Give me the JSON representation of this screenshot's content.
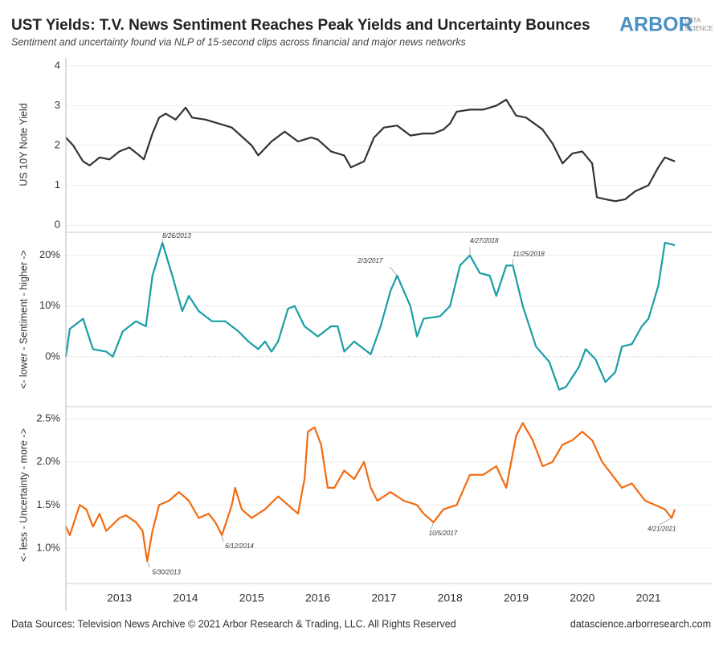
{
  "header": {
    "title": "UST Yields: T.V. News Sentiment Reaches Peak Yields and Uncertainty Bounces",
    "subtitle": "Sentiment and uncertainty found via NLP of 15-second clips across financial and major news networks",
    "logo": "ARBOR",
    "logo_sub": [
      "DATA",
      "SCIENCE"
    ]
  },
  "footer": {
    "left": "Data Sources: Television News Archive © 2021 Arbor Research & Trading, LLC. All Rights Reserved",
    "right": "datascience.arborresearch.com"
  },
  "chart_data": [
    {
      "type": "line",
      "y_label": "US 10Y Note Yield",
      "color": "#333333",
      "grid": true,
      "xlim": [
        2012.19,
        2021.97
      ],
      "ylim": [
        -0.16,
        4.2
      ],
      "yticks": [
        0,
        1,
        2,
        3,
        4
      ],
      "x": [
        2012.19,
        2012.3,
        2012.45,
        2012.55,
        2012.7,
        2012.85,
        2013.0,
        2013.15,
        2013.3,
        2013.37,
        2013.5,
        2013.6,
        2013.7,
        2013.85,
        2014.0,
        2014.1,
        2014.3,
        2014.5,
        2014.7,
        2014.8,
        2015.0,
        2015.1,
        2015.3,
        2015.5,
        2015.7,
        2015.9,
        2016.0,
        2016.2,
        2016.4,
        2016.5,
        2016.7,
        2016.85,
        2017.0,
        2017.2,
        2017.4,
        2017.6,
        2017.75,
        2017.9,
        2018.0,
        2018.1,
        2018.3,
        2018.5,
        2018.7,
        2018.85,
        2019.0,
        2019.15,
        2019.4,
        2019.55,
        2019.7,
        2019.85,
        2020.0,
        2020.15,
        2020.22,
        2020.35,
        2020.5,
        2020.65,
        2020.8,
        2021.0,
        2021.15,
        2021.25,
        2021.4
      ],
      "values": [
        2.2,
        2.0,
        1.6,
        1.5,
        1.7,
        1.65,
        1.85,
        1.95,
        1.75,
        1.65,
        2.3,
        2.7,
        2.8,
        2.65,
        2.95,
        2.7,
        2.65,
        2.55,
        2.45,
        2.3,
        2.0,
        1.75,
        2.1,
        2.35,
        2.1,
        2.2,
        2.15,
        1.85,
        1.75,
        1.45,
        1.6,
        2.2,
        2.45,
        2.5,
        2.25,
        2.3,
        2.3,
        2.4,
        2.55,
        2.85,
        2.9,
        2.9,
        3.0,
        3.15,
        2.75,
        2.7,
        2.4,
        2.05,
        1.55,
        1.8,
        1.85,
        1.55,
        0.7,
        0.65,
        0.6,
        0.65,
        0.85,
        1.0,
        1.45,
        1.7,
        1.6
      ]
    },
    {
      "type": "line",
      "y_label": "<- lower - Sentiment - higher ->",
      "color": "#1a9ea6",
      "grid": true,
      "xlim": [
        2012.19,
        2021.97
      ],
      "ylim": [
        -9.7,
        24.4
      ],
      "yticks": [
        {
          "value": 0,
          "label": "0%"
        },
        {
          "value": 10,
          "label": "10%"
        },
        {
          "value": 20,
          "label": "20%"
        }
      ],
      "x": [
        2012.19,
        2012.25,
        2012.45,
        2012.6,
        2012.8,
        2012.9,
        2013.05,
        2013.25,
        2013.4,
        2013.5,
        2013.65,
        2013.8,
        2013.95,
        2014.05,
        2014.2,
        2014.4,
        2014.6,
        2014.8,
        2014.95,
        2015.1,
        2015.2,
        2015.3,
        2015.4,
        2015.55,
        2015.65,
        2015.8,
        2016.0,
        2016.2,
        2016.3,
        2016.4,
        2016.55,
        2016.7,
        2016.8,
        2016.95,
        2017.1,
        2017.2,
        2017.4,
        2017.5,
        2017.6,
        2017.85,
        2018.0,
        2018.15,
        2018.3,
        2018.45,
        2018.6,
        2018.7,
        2018.85,
        2018.95,
        2019.1,
        2019.3,
        2019.5,
        2019.65,
        2019.75,
        2019.95,
        2020.05,
        2020.2,
        2020.35,
        2020.5,
        2020.6,
        2020.75,
        2020.9,
        2021.0,
        2021.15,
        2021.25,
        2021.4
      ],
      "values": [
        0,
        5.5,
        7.5,
        1.5,
        1,
        0,
        5,
        7,
        6,
        16,
        22.5,
        16,
        9,
        12,
        9,
        7,
        7,
        5,
        3,
        1.5,
        3,
        1,
        3,
        9.5,
        10,
        6,
        4,
        6,
        6,
        1,
        3,
        1.5,
        0.5,
        6,
        13,
        16,
        10,
        4,
        7.5,
        8,
        10,
        18,
        20,
        16.5,
        16,
        12,
        18,
        18,
        10,
        2,
        -1,
        -6.5,
        -6,
        -2,
        1.5,
        -0.5,
        -5,
        -3,
        2,
        2.5,
        6,
        7.5,
        14,
        22.5,
        22
      ],
      "annotations": [
        {
          "text": "8/26/2013",
          "x": 2013.65,
          "y": 22.5
        },
        {
          "text": "2/3/2017",
          "x": 2017.2,
          "y": 16
        },
        {
          "text": "4/27/2018",
          "x": 2018.3,
          "y": 20
        },
        {
          "text": "11/25/2018",
          "x": 2018.95,
          "y": 18
        }
      ]
    },
    {
      "type": "line",
      "y_label": "<- less - Uncertainty - more ->",
      "color": "#f26b11",
      "grid": true,
      "xlim": [
        2012.19,
        2021.97
      ],
      "ylim": [
        0.6,
        2.63
      ],
      "yticks": [
        {
          "value": 1,
          "label": "1.0%"
        },
        {
          "value": 1.5,
          "label": "1.5%"
        },
        {
          "value": 2,
          "label": "2.0%"
        },
        {
          "value": 2.5,
          "label": "2.5%"
        }
      ],
      "xticks": [
        2013,
        2014,
        2015,
        2016,
        2017,
        2018,
        2019,
        2020,
        2021
      ],
      "x": [
        2012.19,
        2012.25,
        2012.4,
        2012.5,
        2012.6,
        2012.7,
        2012.8,
        2013.0,
        2013.1,
        2013.25,
        2013.35,
        2013.42,
        2013.5,
        2013.6,
        2013.75,
        2013.9,
        2014.05,
        2014.2,
        2014.35,
        2014.45,
        2014.55,
        2014.7,
        2014.75,
        2014.85,
        2015.0,
        2015.2,
        2015.4,
        2015.55,
        2015.7,
        2015.8,
        2015.85,
        2015.95,
        2016.05,
        2016.15,
        2016.25,
        2016.4,
        2016.55,
        2016.7,
        2016.8,
        2016.9,
        2017.1,
        2017.3,
        2017.5,
        2017.6,
        2017.75,
        2017.9,
        2018.1,
        2018.3,
        2018.5,
        2018.7,
        2018.85,
        2019.0,
        2019.1,
        2019.25,
        2019.4,
        2019.55,
        2019.7,
        2019.85,
        2020.0,
        2020.15,
        2020.3,
        2020.45,
        2020.6,
        2020.75,
        2020.95,
        2021.1,
        2021.25,
        2021.35,
        2021.4
      ],
      "values": [
        1.25,
        1.15,
        1.5,
        1.45,
        1.25,
        1.4,
        1.2,
        1.35,
        1.38,
        1.3,
        1.2,
        0.85,
        1.2,
        1.5,
        1.55,
        1.65,
        1.55,
        1.35,
        1.4,
        1.3,
        1.15,
        1.5,
        1.7,
        1.45,
        1.35,
        1.45,
        1.6,
        1.5,
        1.4,
        1.8,
        2.35,
        2.4,
        2.2,
        1.7,
        1.7,
        1.9,
        1.8,
        2.0,
        1.7,
        1.55,
        1.65,
        1.55,
        1.5,
        1.4,
        1.3,
        1.45,
        1.5,
        1.85,
        1.85,
        1.95,
        1.7,
        2.3,
        2.45,
        2.25,
        1.95,
        2.0,
        2.2,
        2.25,
        2.35,
        2.25,
        2.0,
        1.85,
        1.7,
        1.75,
        1.55,
        1.5,
        1.45,
        1.35,
        1.45
      ],
      "annotations": [
        {
          "text": "5/30/2013",
          "x": 2013.42,
          "y": 0.85
        },
        {
          "text": "6/12/2014",
          "x": 2014.55,
          "y": 1.15
        },
        {
          "text": "10/5/2017",
          "x": 2017.75,
          "y": 1.3
        },
        {
          "text": "4/21/2021",
          "x": 2021.35,
          "y": 1.35
        }
      ]
    }
  ]
}
